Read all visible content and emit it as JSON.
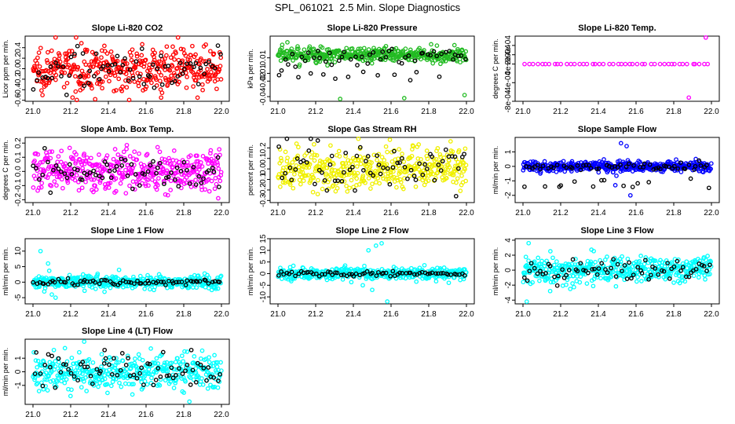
{
  "title": "SPL_061021  2.5 Min. Slope Diagnostics",
  "chart_data": [
    {
      "type": "scatter",
      "title": "Slope Li-820 CO2",
      "ylabel": "Licor ppm per min.",
      "xlim": [
        21.0,
        22.0
      ],
      "ylim": [
        -0.62,
        0.62
      ],
      "xticks": [
        "21.0",
        "21.2",
        "21.4",
        "21.6",
        "21.8",
        "22.0"
      ],
      "yticks": [
        -0.6,
        -0.4,
        -0.2,
        0.0,
        0.2,
        0.4
      ],
      "ytick_labels": [
        "-0.6",
        "-0.4",
        "-0.2",
        "0.0",
        "0.2",
        "0.4"
      ],
      "color": "#ff0000",
      "series": [
        {
          "name": "all readings",
          "color": "#ff0000",
          "n": 420,
          "spread": 0.2,
          "outliers": [
            [
              21.12,
              0.6
            ],
            [
              21.68,
              -0.55
            ],
            [
              21.33,
              -0.58
            ]
          ]
        },
        {
          "name": "highlighted",
          "color": "#000000",
          "n": 70,
          "spread": 0.18
        }
      ]
    },
    {
      "type": "scatter",
      "title": "Slope Li-820 Pressure",
      "ylabel": "kPa per min.",
      "xlim": [
        21.0,
        22.0
      ],
      "ylim": [
        -0.046,
        0.038
      ],
      "xticks": [
        "21.0",
        "21.2",
        "21.4",
        "21.6",
        "21.8",
        "22.0"
      ],
      "yticks": [
        -0.04,
        -0.02,
        -0.01,
        0.01
      ],
      "ytick_labels": [
        "-0.04",
        "-0.02",
        "-0.01",
        "0.01"
      ],
      "color": "#00bb00",
      "series": [
        {
          "name": "all readings",
          "color": "#22bb22",
          "n": 420,
          "spread": 0.005,
          "center": 0.014,
          "outliers": [
            [
              21.05,
              0.03
            ],
            [
              21.33,
              -0.043
            ],
            [
              21.67,
              -0.042
            ],
            [
              21.99,
              -0.038
            ]
          ]
        },
        {
          "name": "highlighted",
          "color": "#000000",
          "n": 60,
          "spread": 0.005,
          "center": 0.012,
          "low_band": [
            -0.02,
            -0.005
          ]
        }
      ]
    },
    {
      "type": "scatter",
      "title": "Slope Li-820 Temp.",
      "ylabel": "degrees C per min.",
      "xlim": [
        21.0,
        22.0
      ],
      "ylim": [
        -0.0008,
        0.0006
      ],
      "xticks": [
        "21.0",
        "21.2",
        "21.4",
        "21.6",
        "21.8",
        "22.0"
      ],
      "yticks": [
        -0.0008,
        -0.0004,
        0,
        0.0002,
        0.0004
      ],
      "ytick_labels": [
        "-8e-04",
        "-4e-04",
        "0e+00",
        "2e-04",
        "4e-04"
      ],
      "color": "#ff00ff",
      "series": [
        {
          "name": "all readings",
          "color": "#ff00ff",
          "n": 45,
          "spread": 0,
          "outliers": [
            [
              21.97,
              0.00057
            ],
            [
              21.88,
              -0.00072
            ]
          ]
        },
        {
          "name": "highlighted",
          "color": "#000000",
          "n": 0,
          "spread": 0
        }
      ]
    },
    {
      "type": "scatter",
      "title": "Slope Amb. Box Temp.",
      "ylabel": "degrees C per min.",
      "xlim": [
        21.0,
        22.0
      ],
      "ylim": [
        -0.22,
        0.24
      ],
      "xticks": [
        "21.0",
        "21.2",
        "21.4",
        "21.6",
        "21.8",
        "22.0"
      ],
      "yticks": [
        -0.2,
        -0.1,
        0.0,
        0.1,
        0.2
      ],
      "ytick_labels": [
        "-0.2",
        "-0.1",
        "0.0",
        "0.1",
        "0.2"
      ],
      "color": "#ff00ff",
      "series": [
        {
          "name": "all readings",
          "color": "#ff00ff",
          "n": 420,
          "spread": 0.07
        },
        {
          "name": "highlighted",
          "color": "#000000",
          "n": 70,
          "spread": 0.05
        }
      ]
    },
    {
      "type": "scatter",
      "title": "Slope Gas Stream RH",
      "ylabel": "percent per min.",
      "xlim": [
        21.0,
        22.0
      ],
      "ylim": [
        -0.32,
        0.3
      ],
      "xticks": [
        "21.0",
        "21.2",
        "21.4",
        "21.6",
        "21.8",
        "22.0"
      ],
      "yticks": [
        -0.3,
        -0.2,
        -0.1,
        0.0,
        0.1,
        0.2
      ],
      "ytick_labels": [
        "-0.3",
        "-0.2",
        "-0.1",
        "0.0",
        "0.1",
        "0.2"
      ],
      "color": "#ffff00",
      "series": [
        {
          "name": "all readings",
          "color": "#f0f000",
          "n": 420,
          "spread": 0.1
        },
        {
          "name": "highlighted",
          "color": "#000000",
          "n": 70,
          "spread": 0.12
        }
      ]
    },
    {
      "type": "scatter",
      "title": "Slope Sample Flow",
      "ylabel": "ml/min per min.",
      "xlim": [
        21.0,
        22.0
      ],
      "ylim": [
        -2.5,
        2.0
      ],
      "xticks": [
        "21.0",
        "21.2",
        "21.4",
        "21.6",
        "21.8",
        "22.0"
      ],
      "yticks": [
        -2,
        -1,
        0,
        1
      ],
      "ytick_labels": [
        "-2",
        "-1",
        "0",
        "1"
      ],
      "color": "#0000ff",
      "series": [
        {
          "name": "all readings",
          "color": "#0000ff",
          "n": 420,
          "spread": 0.18,
          "outliers": [
            [
              21.52,
              1.6
            ],
            [
              21.55,
              1.4
            ],
            [
              21.57,
              -2.0
            ],
            [
              21.49,
              -1.3
            ]
          ]
        },
        {
          "name": "highlighted",
          "color": "#000000",
          "n": 70,
          "spread": 0.15,
          "low_band": [
            -1.5,
            -0.7
          ]
        }
      ]
    },
    {
      "type": "scatter",
      "title": "Slope Line 1 Flow",
      "ylabel": "ml/min per min.",
      "xlim": [
        21.0,
        22.0
      ],
      "ylim": [
        -7,
        14
      ],
      "xticks": [
        "21.0",
        "21.2",
        "21.4",
        "21.6",
        "21.8",
        "22.0"
      ],
      "yticks": [
        -5,
        0,
        5,
        10
      ],
      "ytick_labels": [
        "-5",
        "0",
        "5",
        "10"
      ],
      "color": "#00ffff",
      "series": [
        {
          "name": "all readings",
          "color": "#00ffff",
          "n": 420,
          "spread": 1.0,
          "outliers": [
            [
              21.04,
              10
            ],
            [
              21.08,
              6
            ],
            [
              21.1,
              -4
            ],
            [
              21.12,
              -5
            ],
            [
              21.06,
              -3
            ]
          ]
        },
        {
          "name": "highlighted",
          "color": "#000000",
          "n": 70,
          "spread": 0.4
        }
      ]
    },
    {
      "type": "scatter",
      "title": "Slope Line 2 Flow",
      "ylabel": "ml/min per min.",
      "xlim": [
        21.0,
        22.0
      ],
      "ylim": [
        -13,
        15
      ],
      "xticks": [
        "21.0",
        "21.2",
        "21.4",
        "21.6",
        "21.8",
        "22.0"
      ],
      "yticks": [
        -10,
        -5,
        0,
        5,
        10,
        15
      ],
      "ytick_labels": [
        "-10",
        "-5",
        "0",
        "5",
        "10",
        "15"
      ],
      "color": "#00ffff",
      "series": [
        {
          "name": "all readings",
          "color": "#00ffff",
          "n": 420,
          "spread": 1.2,
          "outliers": [
            [
              21.48,
              10
            ],
            [
              21.52,
              12
            ],
            [
              21.55,
              13
            ],
            [
              21.45,
              -5
            ],
            [
              21.58,
              -12
            ],
            [
              21.5,
              -7
            ]
          ]
        },
        {
          "name": "highlighted",
          "color": "#000000",
          "n": 70,
          "spread": 0.6
        }
      ]
    },
    {
      "type": "scatter",
      "title": "Slope Line 3 Flow",
      "ylabel": "ml/min per min.",
      "xlim": [
        21.0,
        22.0
      ],
      "ylim": [
        -4.5,
        4.2
      ],
      "xticks": [
        "21.0",
        "21.2",
        "21.4",
        "21.6",
        "21.8",
        "22.0"
      ],
      "yticks": [
        -4,
        -2,
        0,
        2,
        4
      ],
      "ytick_labels": [
        "-4",
        "-2",
        "0",
        "2",
        "4"
      ],
      "color": "#00ffff",
      "series": [
        {
          "name": "all readings",
          "color": "#00ffff",
          "n": 420,
          "spread": 0.9,
          "outliers": [
            [
              21.02,
              -4.2
            ],
            [
              21.03,
              3.6
            ]
          ]
        },
        {
          "name": "highlighted",
          "color": "#000000",
          "n": 70,
          "spread": 0.8
        }
      ]
    },
    {
      "type": "scatter",
      "title": "Slope Line 4 (LT) Flow",
      "ylabel": "ml/min per min.",
      "xlim": [
        21.0,
        22.0
      ],
      "ylim": [
        -2.4,
        2.4
      ],
      "xticks": [
        "21.0",
        "21.2",
        "21.4",
        "21.6",
        "21.8",
        "22.0"
      ],
      "yticks": [
        -1,
        0,
        1
      ],
      "ytick_labels": [
        "-1",
        "0",
        "1"
      ],
      "color": "#00ffff",
      "series": [
        {
          "name": "all readings",
          "color": "#00ffff",
          "n": 420,
          "spread": 0.65,
          "outliers": [
            [
              21.83,
              -2.2
            ]
          ]
        },
        {
          "name": "highlighted",
          "color": "#000000",
          "n": 70,
          "spread": 0.65,
          "outliers": [
            [
              21.38,
              1.6
            ],
            [
              21.84,
              1.6
            ]
          ]
        }
      ]
    }
  ]
}
